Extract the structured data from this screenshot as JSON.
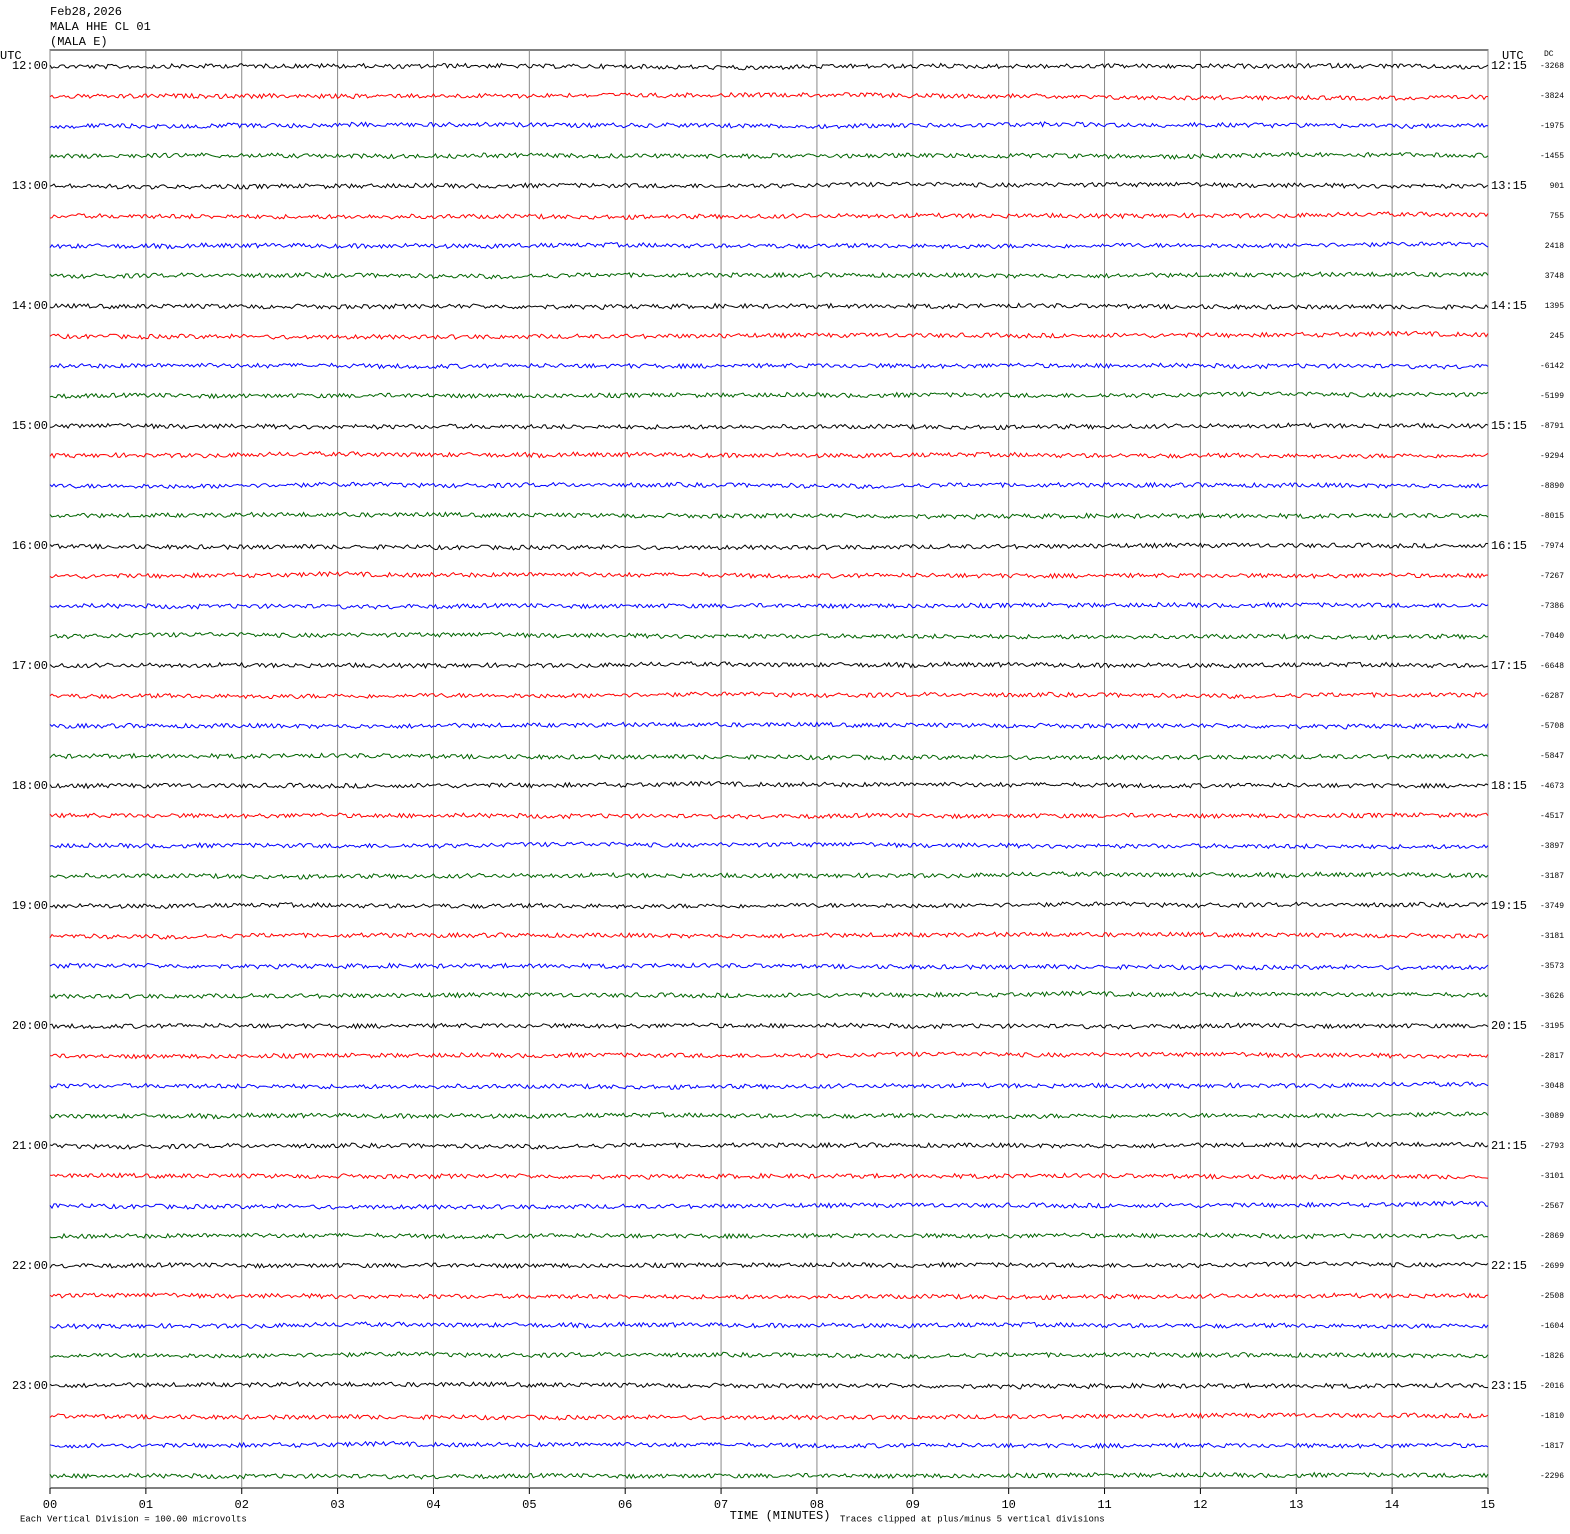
{
  "chart_data": {
    "type": "helicorder",
    "header": [
      "Feb28,2026",
      "MALA HHE CL 01",
      "(MALA E)"
    ],
    "left_axis_title": "UTC",
    "right_axis_title": "UTC",
    "dc_title": "DC",
    "left_labels": [
      "12:00",
      "13:00",
      "14:00",
      "15:00",
      "16:00",
      "17:00",
      "18:00",
      "19:00",
      "20:00",
      "21:00",
      "22:00",
      "23:00"
    ],
    "right_labels": [
      "12:15",
      "13:15",
      "14:15",
      "15:15",
      "16:15",
      "17:15",
      "18:15",
      "19:15",
      "20:15",
      "21:15",
      "22:15",
      "23:15"
    ],
    "dc_values": [
      -3268,
      -3824,
      -1975,
      -1455,
      901,
      755,
      2418,
      3748,
      1395,
      245,
      -6142,
      -5199,
      -8791,
      -9294,
      -8890,
      -8015,
      -7974,
      -7267,
      -7386,
      -7040,
      -6648,
      -6287,
      -5708,
      -5847,
      -4673,
      -4517,
      -3897,
      -3187,
      -3749,
      -3181,
      -3573,
      -3626,
      -3195,
      -2817,
      -3048,
      -3089,
      -2793,
      -3101,
      -2567,
      -2869,
      -2699,
      -2508,
      -1604,
      -1826,
      -2016,
      -1810,
      -1817,
      -2296
    ],
    "trace_colors": [
      "#000000",
      "#ff0000",
      "#0000ff",
      "#006400"
    ],
    "xlabel": "TIME (MINUTES)",
    "xlim": [
      0,
      15
    ],
    "xticks": [
      {
        "value": 0,
        "label": "00"
      },
      {
        "value": 1,
        "label": "01"
      },
      {
        "value": 2,
        "label": "02"
      },
      {
        "value": 3,
        "label": "03"
      },
      {
        "value": 4,
        "label": "04"
      },
      {
        "value": 5,
        "label": "05"
      },
      {
        "value": 6,
        "label": "06"
      },
      {
        "value": 7,
        "label": "07"
      },
      {
        "value": 8,
        "label": "08"
      },
      {
        "value": 9,
        "label": "09"
      },
      {
        "value": 10,
        "label": "10"
      },
      {
        "value": 11,
        "label": "11"
      },
      {
        "value": 12,
        "label": "12"
      },
      {
        "value": 13,
        "label": "13"
      },
      {
        "value": 14,
        "label": "14"
      },
      {
        "value": 15,
        "label": "15"
      }
    ],
    "footer_left": "Each Vertical Division =  100.00 microvolts",
    "footer_right": "Traces clipped at plus/minus 5 vertical divisions",
    "grid": true
  }
}
